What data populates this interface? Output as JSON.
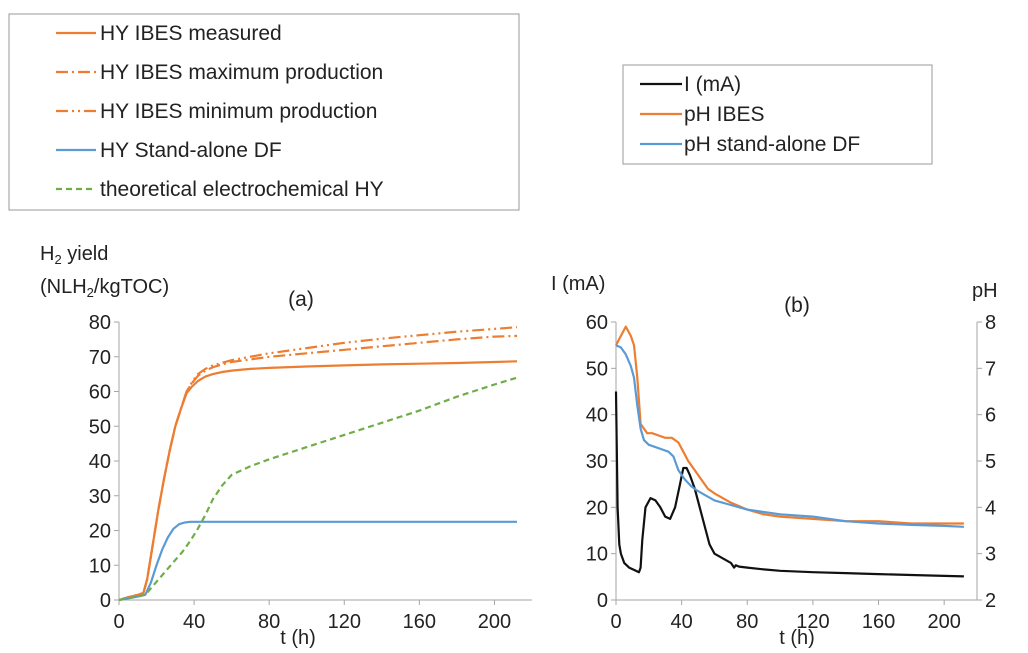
{
  "colors": {
    "orange": "#ED7D31",
    "blue": "#5B9BD5",
    "green": "#70AD47",
    "black": "#111111",
    "grid_text": "#222222"
  },
  "legend_a": {
    "entries": [
      {
        "label": "HY IBES measured",
        "color": "#ED7D31",
        "dash": "solid"
      },
      {
        "label": "HY IBES maximum production",
        "color": "#ED7D31",
        "dash": "dashdot"
      },
      {
        "label": "HY IBES minimum production",
        "color": "#ED7D31",
        "dash": "dashdotdot"
      },
      {
        "label": "HY Stand-alone DF",
        "color": "#5B9BD5",
        "dash": "solid"
      },
      {
        "label": "theoretical electrochemical HY",
        "color": "#70AD47",
        "dash": "dashed"
      }
    ]
  },
  "legend_b": {
    "entries": [
      {
        "label": "I (mA)",
        "color": "#111111"
      },
      {
        "label": "pH IBES",
        "color": "#ED7D31"
      },
      {
        "label": "pH stand-alone DF",
        "color": "#5B9BD5"
      }
    ]
  },
  "chart_data": [
    {
      "type": "line",
      "panel_label": "(a)",
      "ylabel_line1": "H",
      "ylabel_sub1": "2",
      "ylabel_line1_rest": " yield",
      "ylabel_line2_pre": "(NLH",
      "ylabel_sub2": "2",
      "ylabel_line2_post": "/kgTOC)",
      "xlabel": "t (h)",
      "xlim": [
        0,
        220
      ],
      "ylim": [
        0,
        80
      ],
      "xticks": [
        0,
        40,
        80,
        120,
        160,
        200
      ],
      "yticks": [
        0,
        10,
        20,
        30,
        40,
        50,
        60,
        70,
        80
      ],
      "series": [
        {
          "name": "HY IBES measured",
          "color": "#ED7D31",
          "dash": "solid",
          "x": [
            0,
            5,
            10,
            13,
            15,
            18,
            21,
            24,
            27,
            30,
            33,
            36,
            39,
            42,
            46,
            50,
            55,
            60,
            70,
            80,
            100,
            120,
            140,
            160,
            180,
            200,
            212
          ],
          "y": [
            0,
            0.8,
            1.5,
            2,
            6,
            16,
            26,
            35,
            43,
            50,
            55,
            59.5,
            61.5,
            63,
            64.3,
            65,
            65.6,
            66,
            66.5,
            66.8,
            67.2,
            67.5,
            67.8,
            68,
            68.2,
            68.5,
            68.7
          ]
        },
        {
          "name": "HY IBES maximum production",
          "color": "#ED7D31",
          "dash": "dashdot",
          "x": [
            0,
            5,
            10,
            13,
            15,
            18,
            21,
            24,
            27,
            30,
            33,
            36,
            39,
            42,
            46,
            50,
            55,
            60,
            80,
            100,
            120,
            140,
            160,
            180,
            200,
            212
          ],
          "y": [
            0,
            0.8,
            1.5,
            2,
            6,
            16,
            26,
            35,
            43,
            50,
            55,
            60,
            62.5,
            64.5,
            66,
            67,
            67.8,
            68.5,
            70,
            71,
            72,
            73,
            74,
            75,
            75.8,
            76
          ]
        },
        {
          "name": "HY IBES minimum production",
          "color": "#ED7D31",
          "dash": "dashdotdot",
          "x": [
            0,
            5,
            10,
            13,
            15,
            18,
            21,
            24,
            27,
            30,
            33,
            36,
            39,
            42,
            46,
            50,
            55,
            60,
            80,
            100,
            120,
            140,
            160,
            180,
            200,
            212
          ],
          "y": [
            0,
            0.8,
            1.5,
            2,
            6,
            16,
            26,
            35,
            43,
            50,
            55,
            60,
            62.8,
            65,
            66.5,
            67.5,
            68.3,
            69,
            71,
            72.5,
            74,
            75.2,
            76.2,
            77.2,
            78,
            78.5
          ]
        },
        {
          "name": "HY Stand-alone DF",
          "color": "#5B9BD5",
          "dash": "solid",
          "x": [
            0,
            5,
            10,
            14,
            17,
            20,
            23,
            26,
            29,
            32,
            35,
            38,
            42,
            60,
            100,
            150,
            212
          ],
          "y": [
            0,
            0.5,
            1,
            1.5,
            5,
            10,
            14.5,
            18,
            20.5,
            21.8,
            22.3,
            22.5,
            22.5,
            22.5,
            22.5,
            22.5,
            22.5
          ]
        },
        {
          "name": "theoretical electrochemical HY",
          "color": "#70AD47",
          "dash": "dashed",
          "x": [
            0,
            5,
            10,
            14,
            18,
            22,
            26,
            30,
            34,
            38,
            42,
            46,
            50,
            55,
            60,
            70,
            80,
            100,
            120,
            140,
            160,
            180,
            200,
            212
          ],
          "y": [
            0,
            0.5,
            1,
            1.5,
            4,
            6.5,
            9,
            11.5,
            14,
            17,
            20.5,
            24.5,
            29,
            33,
            36,
            38.5,
            40.5,
            44,
            47.5,
            51,
            54.5,
            58.5,
            62,
            64
          ]
        }
      ]
    },
    {
      "type": "line",
      "panel_label": "(b)",
      "ylabel_left": "I (mA)",
      "ylabel_right": "pH",
      "xlabel": "t (h)",
      "xlim": [
        0,
        220
      ],
      "ylim_left": [
        0,
        60
      ],
      "ylim_right": [
        2,
        8
      ],
      "xticks": [
        0,
        40,
        80,
        120,
        160,
        200
      ],
      "yticks_left": [
        0,
        10,
        20,
        30,
        40,
        50,
        60
      ],
      "yticks_right": [
        2,
        3,
        4,
        5,
        6,
        7,
        8
      ],
      "series": [
        {
          "name": "I (mA)",
          "color": "#111111",
          "axis": "left",
          "x": [
            0,
            1,
            2,
            3,
            5,
            8,
            11,
            14,
            15,
            16,
            18,
            21,
            24,
            27,
            30,
            33,
            36,
            39,
            41,
            43,
            45,
            48,
            51,
            54,
            57,
            60,
            65,
            70,
            72,
            73,
            75,
            80,
            90,
            100,
            120,
            140,
            160,
            180,
            200,
            212
          ],
          "y": [
            45,
            20,
            12,
            10,
            8,
            7,
            6.5,
            6,
            7,
            13,
            20,
            22,
            21.5,
            20,
            18,
            17.5,
            20,
            25,
            28.5,
            28.5,
            27,
            24,
            20,
            16,
            12,
            10,
            9,
            8,
            7,
            7.5,
            7.2,
            7,
            6.6,
            6.3,
            6,
            5.8,
            5.6,
            5.4,
            5.2,
            5.1
          ]
        },
        {
          "name": "pH IBES",
          "color": "#ED7D31",
          "axis": "right",
          "x": [
            0,
            3,
            6,
            9,
            11,
            13,
            15,
            17,
            19,
            22,
            26,
            30,
            34,
            38,
            41,
            44,
            48,
            52,
            56,
            60,
            70,
            80,
            90,
            100,
            120,
            140,
            160,
            180,
            200,
            212
          ],
          "y": [
            7.5,
            7.7,
            7.9,
            7.7,
            7.5,
            6.8,
            5.8,
            5.7,
            5.6,
            5.6,
            5.55,
            5.5,
            5.5,
            5.4,
            5.2,
            5.0,
            4.8,
            4.6,
            4.4,
            4.3,
            4.1,
            3.95,
            3.85,
            3.8,
            3.75,
            3.7,
            3.7,
            3.65,
            3.65,
            3.65
          ]
        },
        {
          "name": "pH stand-alone DF",
          "color": "#5B9BD5",
          "axis": "right",
          "x": [
            0,
            3,
            6,
            9,
            11,
            13,
            15,
            17,
            20,
            24,
            28,
            32,
            35,
            38,
            42,
            46,
            50,
            55,
            60,
            70,
            80,
            90,
            100,
            120,
            140,
            160,
            180,
            200,
            212
          ],
          "y": [
            7.5,
            7.45,
            7.3,
            7.05,
            6.8,
            6.2,
            5.7,
            5.45,
            5.35,
            5.3,
            5.25,
            5.2,
            5.1,
            4.8,
            4.6,
            4.45,
            4.35,
            4.25,
            4.15,
            4.05,
            3.95,
            3.9,
            3.85,
            3.8,
            3.7,
            3.65,
            3.62,
            3.6,
            3.58
          ]
        }
      ]
    }
  ]
}
